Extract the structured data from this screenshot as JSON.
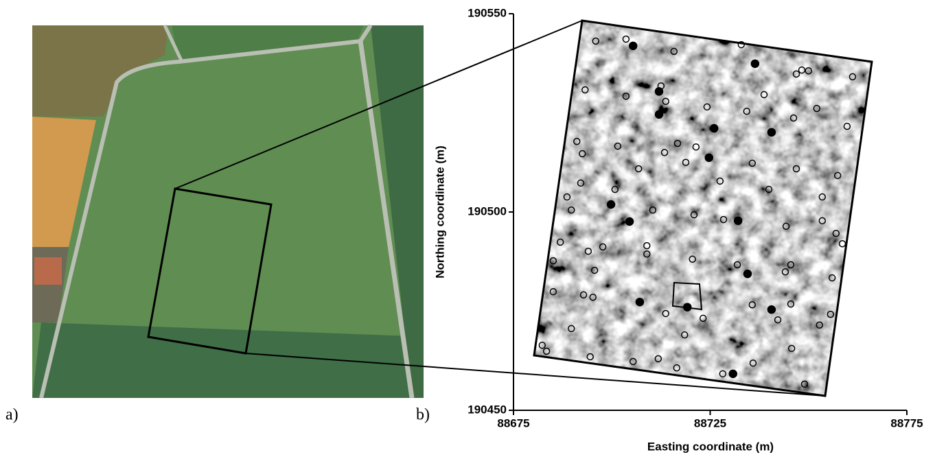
{
  "panel_labels": [
    "a)",
    "b)"
  ],
  "chart_data": {
    "type": "scatter",
    "xlabel": "Easting coordinate (m)",
    "ylabel": "Northing coordinate (m)",
    "xlim": [
      88675,
      88775
    ],
    "ylim": [
      190450,
      190550
    ],
    "xticks": [
      88675,
      88725,
      88775
    ],
    "yticks": [
      190450,
      190500,
      190550
    ],
    "series": [
      {
        "color": "#000000",
        "filled": true,
        "x": [
          88705.4,
          88736.4,
          88712.0,
          88712.0,
          88726.0,
          88740.6,
          88724.7,
          88699.8,
          88704.5,
          88732.1,
          88734.5,
          88707.1,
          88719.2,
          88740.6,
          88730.8
        ],
        "values": [
          190541.9,
          190537.4,
          190530.4,
          190524.6,
          190521.1,
          190520.1,
          190513.7,
          190501.9,
          190497.6,
          190497.8,
          190484.4,
          190477.3,
          190476.0,
          190475.4,
          190459.2
        ]
      },
      {
        "color": "#000000",
        "filled": false,
        "x": [
          88695.9,
          88703.6,
          88715.8,
          88732.9,
          88746.9,
          88748.3,
          88750.0,
          88761.2,
          88693.2,
          88703.6,
          88712.5,
          88713.7,
          88738.7,
          88724.2,
          88734.3,
          88752.1,
          88746.2,
          88759.8,
          88691.1,
          88692.5,
          88701.5,
          88713.4,
          88716.7,
          88721.4,
          88718.8,
          88735.7,
          88746.9,
          88757.4,
          88706.8,
          88692.1,
          88727.5,
          88739.9,
          88753.5,
          88688.6,
          88700.8,
          88689.7,
          88710.4,
          88720.9,
          88728.4,
          88744.3,
          88753.5,
          88757.0,
          88758.6,
          88686.9,
          88697.7,
          88708.9,
          88708.9,
          88694.0,
          88685.1,
          88720.5,
          88731.9,
          88745.5,
          88744.1,
          88756.0,
          88695.6,
          88685.1,
          88692.8,
          88695.2,
          88735.7,
          88745.5,
          88742.2,
          88723.2,
          88713.7,
          88755.6,
          88752.8,
          88689.7,
          88718.5,
          88682.3,
          88683.4,
          88694.5,
          88705.4,
          88711.8,
          88716.5,
          88728.2,
          88735.9,
          88745.7,
          88749.0
        ],
        "values": [
          190543.1,
          190543.6,
          190540.5,
          190542.2,
          190534.8,
          190535.8,
          190535.6,
          190534.1,
          190530.8,
          190529.2,
          190531.8,
          190527.9,
          190529.6,
          190526.5,
          190525.4,
          190526.1,
          190523.7,
          190521.6,
          190517.8,
          190514.7,
          190516.6,
          190515.0,
          190517.3,
          190516.4,
          190512.5,
          190512.3,
          190510.9,
          190509.2,
          190510.9,
          190507.3,
          190507.8,
          190505.7,
          190503.8,
          190503.8,
          190505.7,
          190500.5,
          190500.5,
          190499.3,
          190498.1,
          190496.4,
          190497.8,
          190494.6,
          190492.0,
          190492.4,
          190491.2,
          190491.5,
          190489.4,
          190490.1,
          190487.7,
          190488.1,
          190486.7,
          190486.7,
          190484.9,
          190483.4,
          190485.3,
          190479.9,
          190479.1,
          190478.5,
          190476.6,
          190476.8,
          190472.8,
          190473.2,
          190474.4,
          190474.2,
          190471.5,
          190470.6,
          190469.0,
          190466.4,
          190464.9,
          190463.5,
          190462.3,
          190463.0,
          190460.7,
          190459.2,
          190461.9,
          190465.6,
          190456.6
        ]
      }
    ]
  }
}
